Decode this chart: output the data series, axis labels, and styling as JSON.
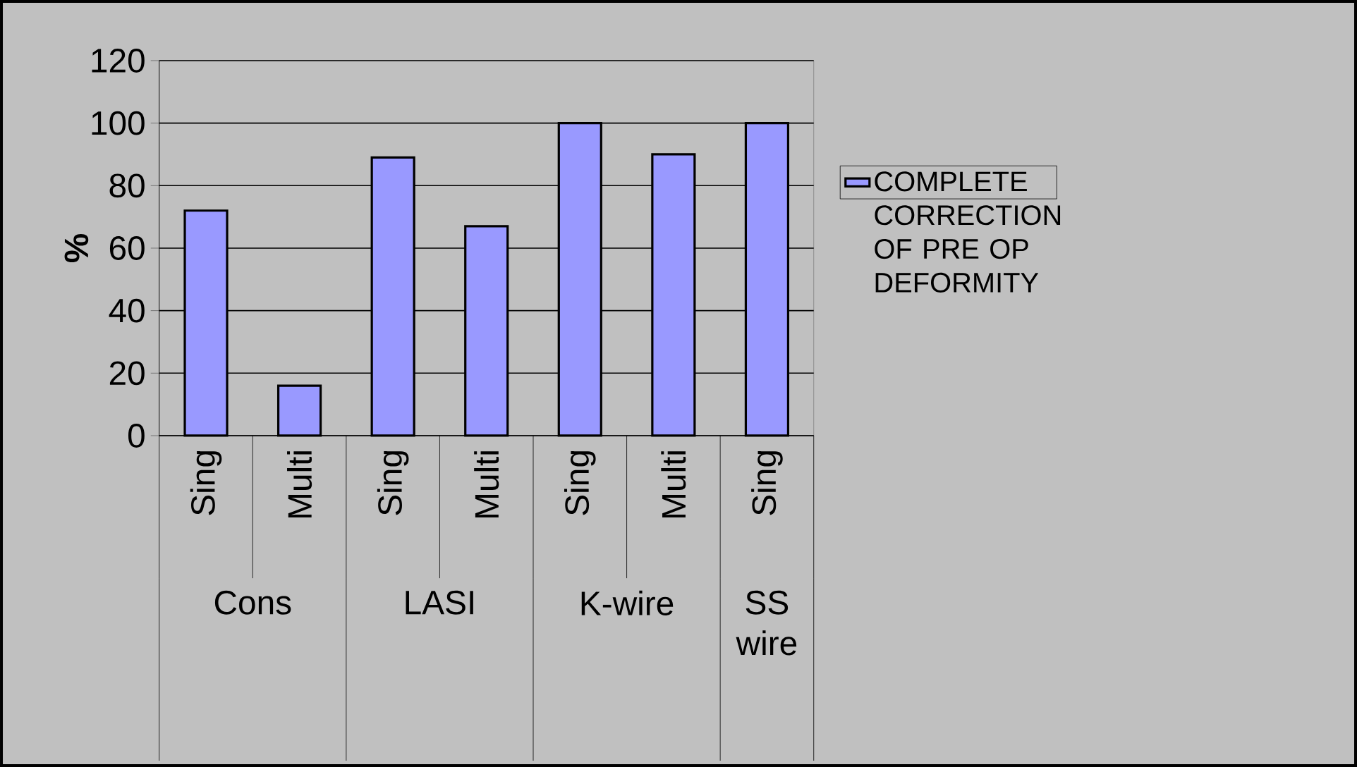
{
  "chart_data": {
    "type": "bar",
    "ylabel": "%",
    "categories": [
      "Sing",
      "Multi",
      "Sing",
      "Multi",
      "Sing",
      "Multi",
      "Sing"
    ],
    "series": [
      {
        "name": "COMPLETE CORRECTION OF PRE OP DEFORMITY",
        "color": "#9999ff",
        "values": [
          72,
          16,
          89,
          67,
          100,
          90,
          100
        ]
      }
    ],
    "ylim": [
      0,
      120
    ],
    "yticks": [
      0,
      20,
      40,
      60,
      80,
      100,
      120
    ],
    "grid": "y",
    "legend": "right",
    "annotations": [
      "Cons",
      "LASI",
      "K-wire",
      "SS wire"
    ]
  }
}
